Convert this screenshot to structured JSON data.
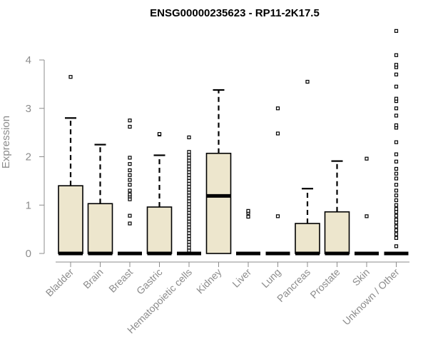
{
  "chart_data": {
    "type": "boxplot",
    "title": "ENSG00000235623 - RP11-2K17.5",
    "ylabel": "Expression",
    "xlabel": "",
    "ylim": [
      0,
      4.6
    ],
    "yticks": [
      0,
      1,
      2,
      3,
      4
    ],
    "grid": false,
    "legend": "none",
    "colors": {
      "box_fill": "#ede6cd",
      "stroke": "#000000",
      "axis": "#8c8c8c"
    },
    "categories": [
      "Bladder",
      "Brain",
      "Breast",
      "Gastric",
      "Hematopoietic cells",
      "Kidney",
      "Liver",
      "Lung",
      "Pancreas",
      "Prostate",
      "Skin",
      "Unknown / Other"
    ],
    "boxes": [
      {
        "q1": 0,
        "median": 0,
        "q3": 1.4,
        "whisker_low": 0,
        "whisker_high": 2.8,
        "outliers": [
          3.65
        ]
      },
      {
        "q1": 0,
        "median": 0,
        "q3": 1.03,
        "whisker_low": 0,
        "whisker_high": 2.25,
        "outliers": []
      },
      {
        "q1": 0,
        "median": 0,
        "q3": 0,
        "whisker_low": 0,
        "whisker_high": 0,
        "outliers": [
          0.62,
          0.78,
          1.12,
          1.18,
          1.22,
          1.3,
          1.42,
          1.52,
          1.62,
          1.72,
          1.85,
          1.98,
          2.62,
          2.75
        ]
      },
      {
        "q1": 0,
        "median": 0,
        "q3": 0.96,
        "whisker_low": 0,
        "whisker_high": 2.03,
        "outliers": [
          2.46,
          2.47
        ]
      },
      {
        "q1": 0,
        "median": 0,
        "q3": 0,
        "whisker_low": 0,
        "whisker_high": 0,
        "outliers": [
          0.06,
          0.12,
          0.18,
          0.24,
          0.3,
          0.36,
          0.42,
          0.48,
          0.54,
          0.6,
          0.66,
          0.72,
          0.78,
          0.84,
          0.9,
          0.96,
          1.02,
          1.08,
          1.14,
          1.2,
          1.26,
          1.32,
          1.38,
          1.44,
          1.5,
          1.56,
          1.62,
          1.68,
          1.74,
          1.8,
          1.86,
          1.92,
          1.98,
          2.04,
          2.1,
          2.4
        ]
      },
      {
        "q1": 0,
        "median": 1.19,
        "q3": 2.07,
        "whisker_low": 0,
        "whisker_high": 3.38,
        "outliers": []
      },
      {
        "q1": 0,
        "median": 0,
        "q3": 0,
        "whisker_low": 0,
        "whisker_high": 0,
        "outliers": [
          0.76,
          0.84,
          0.88
        ]
      },
      {
        "q1": 0,
        "median": 0,
        "q3": 0,
        "whisker_low": 0,
        "whisker_high": 0,
        "outliers": [
          0.77,
          2.48,
          3.0
        ]
      },
      {
        "q1": 0,
        "median": 0,
        "q3": 0.62,
        "whisker_low": 0,
        "whisker_high": 1.34,
        "outliers": [
          3.55
        ]
      },
      {
        "q1": 0,
        "median": 0,
        "q3": 0.86,
        "whisker_low": 0,
        "whisker_high": 1.91,
        "outliers": []
      },
      {
        "q1": 0,
        "median": 0,
        "q3": 0,
        "whisker_low": 0,
        "whisker_high": 0,
        "outliers": [
          0.77,
          1.96
        ]
      },
      {
        "q1": 0,
        "median": 0,
        "q3": 0,
        "whisker_low": 0,
        "whisker_high": 0,
        "outliers": [
          0.15,
          0.32,
          0.4,
          0.48,
          0.56,
          0.64,
          0.7,
          0.78,
          0.86,
          0.92,
          1.0,
          1.1,
          1.2,
          1.3,
          1.42,
          1.55,
          1.65,
          1.75,
          1.9,
          2.05,
          2.3,
          2.6,
          2.65,
          2.85,
          3.0,
          3.15,
          3.2,
          3.45,
          3.7,
          3.85,
          3.9,
          4.1,
          4.6
        ]
      }
    ]
  }
}
